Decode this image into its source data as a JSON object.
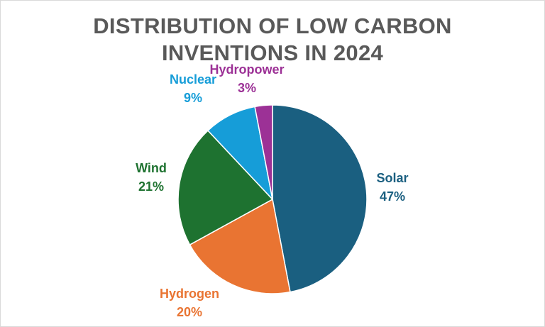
{
  "chart_data": {
    "type": "pie",
    "title": "DISTRIBUTION OF LOW CARBON INVENTIONS IN 2024",
    "title_lines": [
      "DISTRIBUTION OF LOW CARBON",
      "INVENTIONS IN 2024"
    ],
    "slices": [
      {
        "name": "Solar",
        "value": 47,
        "label": "47%",
        "color": "#1a5f80"
      },
      {
        "name": "Hydrogen",
        "value": 20,
        "label": "20%",
        "color": "#e97432"
      },
      {
        "name": "Wind",
        "value": 21,
        "label": "21%",
        "color": "#1e7230"
      },
      {
        "name": "Nuclear",
        "value": 9,
        "label": "9%",
        "color": "#169dd8"
      },
      {
        "name": "Hydropower",
        "value": 3,
        "label": "3%",
        "color": "#9c3196"
      }
    ],
    "start_angle_deg": 0,
    "direction": "clockwise",
    "legend": "none",
    "data_labels": "outside"
  }
}
